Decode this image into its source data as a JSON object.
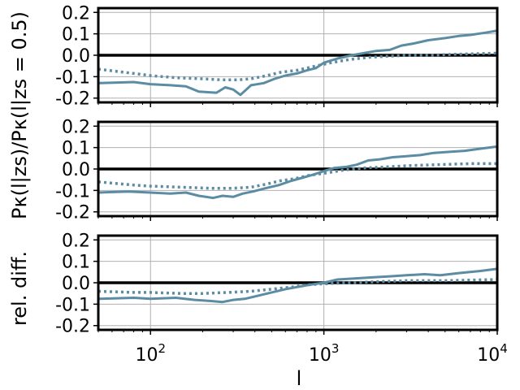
{
  "chart_data": {
    "type": "line",
    "x_scale": "log",
    "xlim": [
      50,
      10000
    ],
    "xlabel": "l",
    "ylabel_lines": [
      "rel. diff.",
      "Pκ(l|zs)/Pκ(l|zs = 0.5)"
    ],
    "x_ticks": [
      {
        "value": 100,
        "base": "10",
        "exp": "2"
      },
      {
        "value": 1000,
        "base": "10",
        "exp": "3"
      },
      {
        "value": 10000,
        "base": "10",
        "exp": "4"
      }
    ],
    "y_ticks": [
      "-0.2",
      "-0.1",
      "0.0",
      "0.1",
      "0.2"
    ],
    "y_tick_values": [
      -0.2,
      -0.1,
      0.0,
      0.1,
      0.2
    ],
    "grid": true,
    "line_color": "#5b8ca3",
    "panels": [
      {
        "ylim": [
          -0.22,
          0.22
        ],
        "series": [
          {
            "style": "solid",
            "points": [
              [
                50,
                -0.13
              ],
              [
                80,
                -0.125
              ],
              [
                100,
                -0.135
              ],
              [
                130,
                -0.14
              ],
              [
                160,
                -0.145
              ],
              [
                190,
                -0.17
              ],
              [
                240,
                -0.175
              ],
              [
                270,
                -0.15
              ],
              [
                300,
                -0.16
              ],
              [
                330,
                -0.185
              ],
              [
                380,
                -0.14
              ],
              [
                450,
                -0.13
              ],
              [
                520,
                -0.11
              ],
              [
                600,
                -0.095
              ],
              [
                700,
                -0.085
              ],
              [
                800,
                -0.07
              ],
              [
                900,
                -0.06
              ],
              [
                1000,
                -0.035
              ],
              [
                1200,
                -0.015
              ],
              [
                1450,
                0.0
              ],
              [
                1700,
                0.01
              ],
              [
                2000,
                0.02
              ],
              [
                2400,
                0.025
              ],
              [
                2800,
                0.045
              ],
              [
                3300,
                0.055
              ],
              [
                4000,
                0.07
              ],
              [
                5000,
                0.08
              ],
              [
                6000,
                0.09
              ],
              [
                7000,
                0.095
              ],
              [
                8500,
                0.105
              ],
              [
                10000,
                0.115
              ]
            ]
          },
          {
            "style": "dotted",
            "points": [
              [
                50,
                -0.065
              ],
              [
                80,
                -0.085
              ],
              [
                100,
                -0.095
              ],
              [
                140,
                -0.105
              ],
              [
                200,
                -0.11
              ],
              [
                260,
                -0.115
              ],
              [
                320,
                -0.115
              ],
              [
                380,
                -0.11
              ],
              [
                470,
                -0.095
              ],
              [
                560,
                -0.08
              ],
              [
                700,
                -0.07
              ],
              [
                900,
                -0.05
              ],
              [
                1100,
                -0.035
              ],
              [
                1400,
                -0.02
              ],
              [
                1800,
                -0.01
              ],
              [
                2300,
                -0.005
              ],
              [
                3000,
                0.0
              ],
              [
                4000,
                0.0
              ],
              [
                6000,
                0.005
              ],
              [
                10000,
                0.01
              ]
            ]
          }
        ]
      },
      {
        "ylim": [
          -0.22,
          0.22
        ],
        "series": [
          {
            "style": "solid",
            "points": [
              [
                50,
                -0.11
              ],
              [
                75,
                -0.105
              ],
              [
                100,
                -0.11
              ],
              [
                130,
                -0.115
              ],
              [
                160,
                -0.11
              ],
              [
                190,
                -0.125
              ],
              [
                230,
                -0.135
              ],
              [
                260,
                -0.125
              ],
              [
                300,
                -0.13
              ],
              [
                340,
                -0.115
              ],
              [
                390,
                -0.105
              ],
              [
                460,
                -0.09
              ],
              [
                550,
                -0.075
              ],
              [
                650,
                -0.055
              ],
              [
                760,
                -0.04
              ],
              [
                880,
                -0.025
              ],
              [
                1000,
                -0.01
              ],
              [
                1150,
                0.005
              ],
              [
                1350,
                0.01
              ],
              [
                1550,
                0.02
              ],
              [
                1800,
                0.04
              ],
              [
                2100,
                0.045
              ],
              [
                2500,
                0.055
              ],
              [
                3000,
                0.06
              ],
              [
                3600,
                0.065
              ],
              [
                4300,
                0.075
              ],
              [
                5300,
                0.08
              ],
              [
                6500,
                0.085
              ],
              [
                8000,
                0.095
              ],
              [
                10000,
                0.105
              ]
            ]
          },
          {
            "style": "dotted",
            "points": [
              [
                50,
                -0.06
              ],
              [
                80,
                -0.075
              ],
              [
                100,
                -0.08
              ],
              [
                150,
                -0.085
              ],
              [
                220,
                -0.09
              ],
              [
                300,
                -0.09
              ],
              [
                380,
                -0.085
              ],
              [
                470,
                -0.07
              ],
              [
                560,
                -0.055
              ],
              [
                680,
                -0.045
              ],
              [
                820,
                -0.03
              ],
              [
                1000,
                -0.02
              ],
              [
                1300,
                -0.005
              ],
              [
                1700,
                0.005
              ],
              [
                2300,
                0.01
              ],
              [
                3000,
                0.015
              ],
              [
                4500,
                0.02
              ],
              [
                7000,
                0.025
              ],
              [
                10000,
                0.025
              ]
            ]
          }
        ]
      },
      {
        "ylim": [
          -0.22,
          0.22
        ],
        "series": [
          {
            "style": "solid",
            "points": [
              [
                50,
                -0.075
              ],
              [
                80,
                -0.07
              ],
              [
                100,
                -0.075
              ],
              [
                140,
                -0.07
              ],
              [
                180,
                -0.08
              ],
              [
                220,
                -0.085
              ],
              [
                260,
                -0.09
              ],
              [
                300,
                -0.08
              ],
              [
                350,
                -0.075
              ],
              [
                420,
                -0.06
              ],
              [
                500,
                -0.045
              ],
              [
                600,
                -0.03
              ],
              [
                700,
                -0.02
              ],
              [
                820,
                -0.01
              ],
              [
                1000,
                0.0
              ],
              [
                1200,
                0.015
              ],
              [
                1500,
                0.02
              ],
              [
                1900,
                0.025
              ],
              [
                2400,
                0.03
              ],
              [
                3000,
                0.035
              ],
              [
                3800,
                0.04
              ],
              [
                4700,
                0.035
              ],
              [
                6000,
                0.045
              ],
              [
                8000,
                0.055
              ],
              [
                10000,
                0.065
              ]
            ]
          },
          {
            "style": "dotted",
            "points": [
              [
                50,
                -0.04
              ],
              [
                80,
                -0.045
              ],
              [
                100,
                -0.045
              ],
              [
                150,
                -0.05
              ],
              [
                200,
                -0.05
              ],
              [
                280,
                -0.045
              ],
              [
                380,
                -0.04
              ],
              [
                500,
                -0.03
              ],
              [
                650,
                -0.02
              ],
              [
                800,
                -0.01
              ],
              [
                1000,
                -0.005
              ],
              [
                1400,
                0.0
              ],
              [
                2000,
                0.005
              ],
              [
                3000,
                0.01
              ],
              [
                5000,
                0.01
              ],
              [
                10000,
                0.015
              ]
            ]
          }
        ]
      }
    ]
  }
}
